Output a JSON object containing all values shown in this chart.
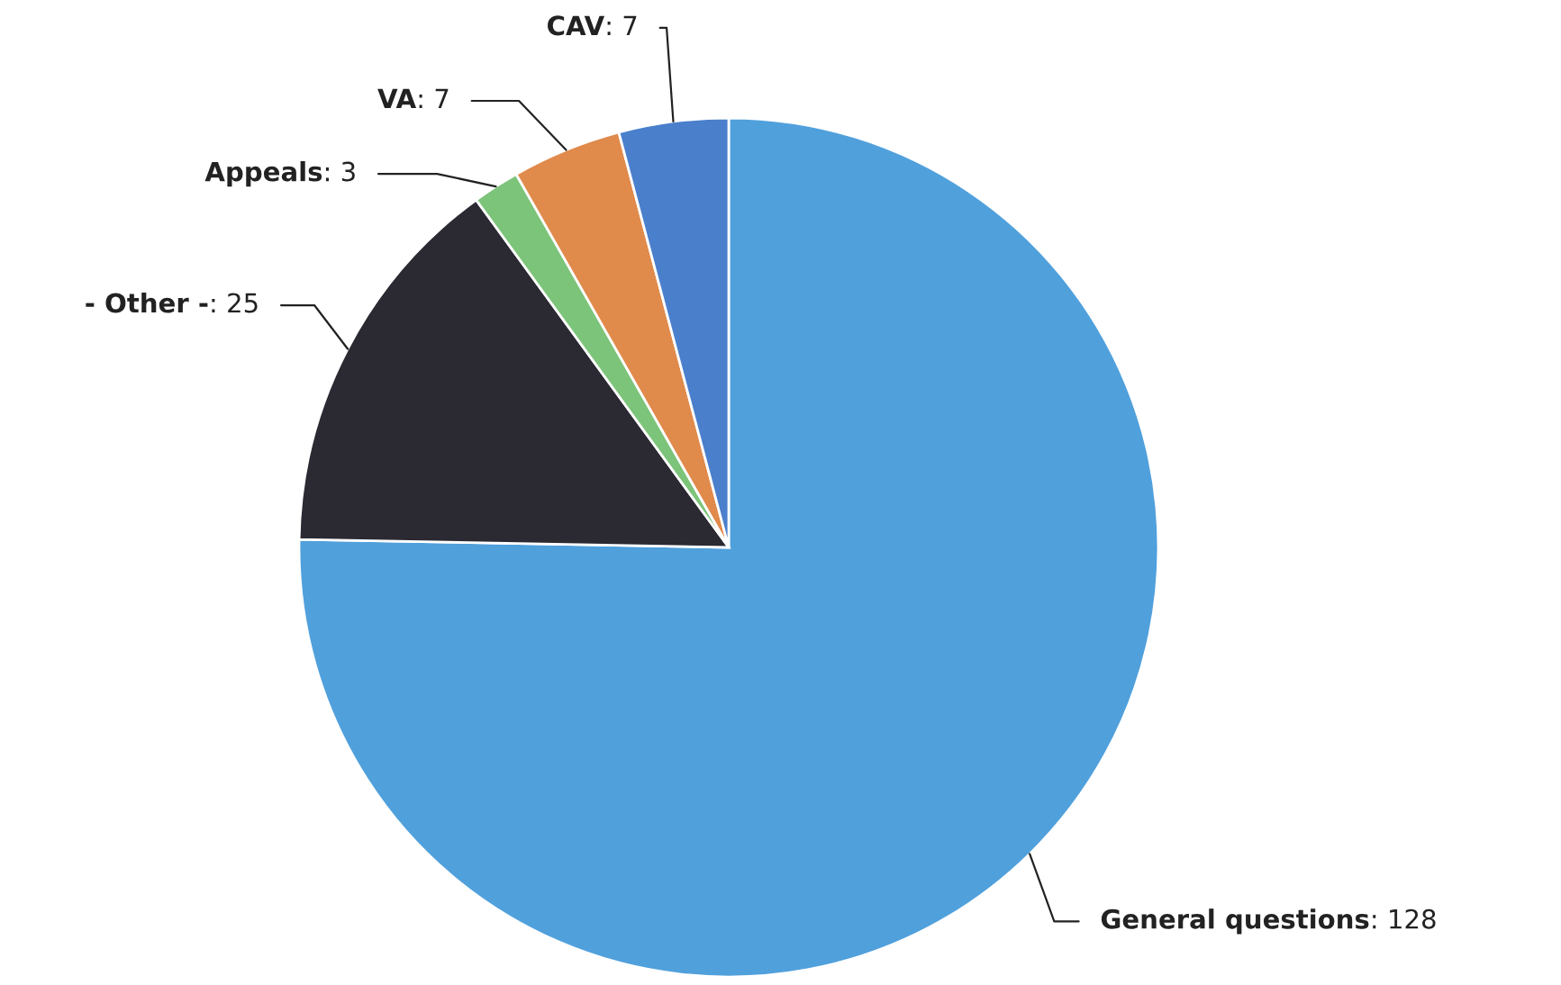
{
  "chart_data": {
    "type": "pie",
    "categories": [
      "General questions",
      "- Other -",
      "Appeals",
      "VA",
      "CAV"
    ],
    "values": [
      128,
      25,
      3,
      7,
      7
    ],
    "colors": [
      "#50a0dc",
      "#2b2a33",
      "#7cc47a",
      "#e08a4c",
      "#4a7fcc"
    ],
    "value_labels": [
      ": 128",
      ": 25",
      ": 3",
      ": 7",
      ": 7"
    ]
  }
}
